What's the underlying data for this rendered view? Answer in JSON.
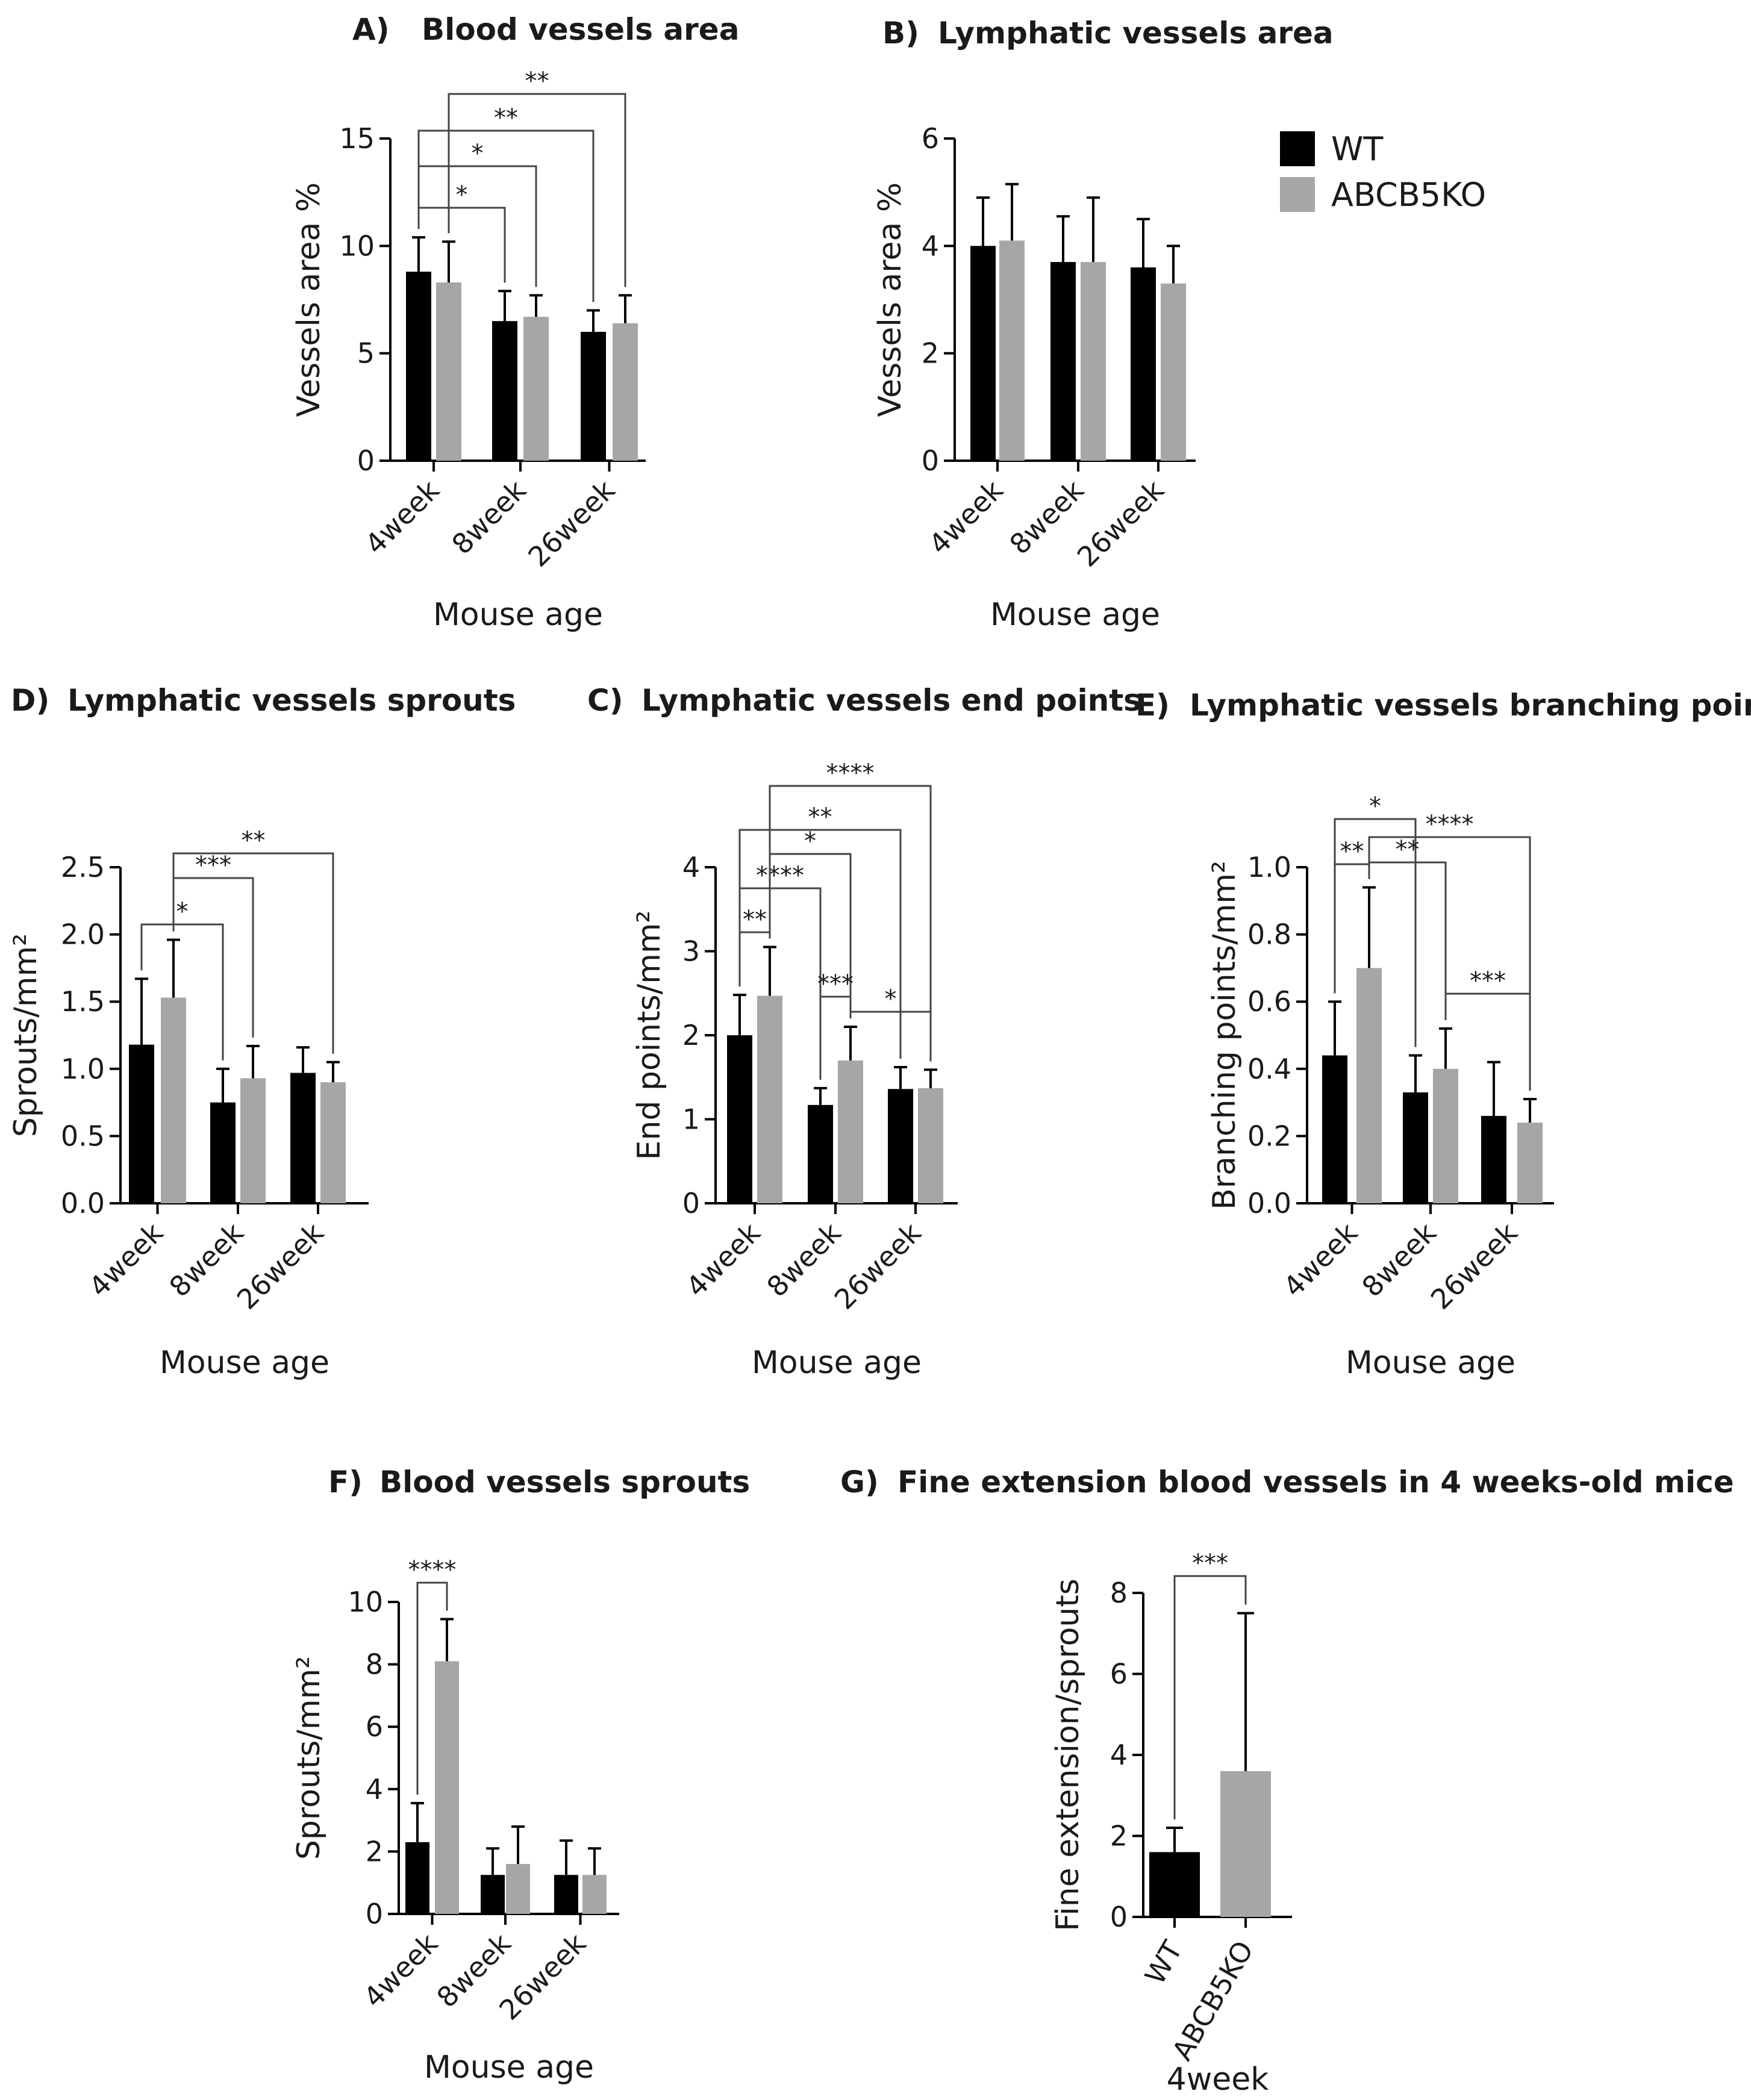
{
  "legend": {
    "items": [
      {
        "label": "WT",
        "color": "#000000"
      },
      {
        "label": "ABCB5KO",
        "color": "#a6a6a8"
      }
    ]
  },
  "chart_data": [
    {
      "id": "A",
      "panel_label": "A)",
      "title": "Blood vessels area",
      "type": "bar",
      "categories": [
        "4week",
        "8week",
        "26week"
      ],
      "series": [
        {
          "name": "WT",
          "values": [
            8.8,
            6.5,
            6.0
          ],
          "errors": [
            1.6,
            1.4,
            1.0
          ]
        },
        {
          "name": "ABCB5KO",
          "values": [
            8.3,
            6.7,
            6.4
          ],
          "errors": [
            1.9,
            1.0,
            1.3
          ]
        }
      ],
      "ylabel": "Vessels area %",
      "xlabel": "Mouse age",
      "ylim": [
        0,
        15
      ],
      "yticks": [
        "0",
        "5",
        "10",
        "15"
      ],
      "significance": [
        {
          "from": [
            0,
            0
          ],
          "to": [
            1,
            0
          ],
          "label": "*"
        },
        {
          "from": [
            0,
            0
          ],
          "to": [
            1,
            1
          ],
          "label": "*"
        },
        {
          "from": [
            0,
            0
          ],
          "to": [
            2,
            0
          ],
          "label": "**"
        },
        {
          "from": [
            0,
            1
          ],
          "to": [
            2,
            1
          ],
          "label": "**"
        }
      ]
    },
    {
      "id": "B",
      "panel_label": "B)",
      "title": "Lymphatic vessels area",
      "type": "bar",
      "categories": [
        "4week",
        "8week",
        "26week"
      ],
      "series": [
        {
          "name": "WT",
          "values": [
            4.0,
            3.7,
            3.6
          ],
          "errors": [
            0.9,
            0.85,
            0.9
          ]
        },
        {
          "name": "ABCB5KO",
          "values": [
            4.1,
            3.7,
            3.3
          ],
          "errors": [
            1.05,
            1.2,
            0.7
          ]
        }
      ],
      "ylabel": "Vessels area %",
      "xlabel": "Mouse age",
      "ylim": [
        0,
        6
      ],
      "yticks": [
        "0",
        "2",
        "4",
        "6"
      ],
      "significance": []
    },
    {
      "id": "D",
      "panel_label": "D)",
      "title": "Lymphatic vessels sprouts",
      "type": "bar",
      "categories": [
        "4week",
        "8week",
        "26week"
      ],
      "series": [
        {
          "name": "WT",
          "values": [
            1.18,
            0.75,
            0.97
          ],
          "errors": [
            0.49,
            0.25,
            0.19
          ]
        },
        {
          "name": "ABCB5KO",
          "values": [
            1.53,
            0.93,
            0.9
          ],
          "errors": [
            0.43,
            0.24,
            0.15
          ]
        }
      ],
      "ylabel": "Sprouts/mm²",
      "xlabel": "Mouse age",
      "ylim": [
        0,
        2.5
      ],
      "yticks": [
        "0.0",
        "0.5",
        "1.0",
        "1.5",
        "2.0",
        "2.5"
      ],
      "significance": [
        {
          "from": [
            0,
            0
          ],
          "to": [
            1,
            0
          ],
          "label": "*"
        },
        {
          "from": [
            0,
            1
          ],
          "to": [
            1,
            1
          ],
          "label": "***"
        },
        {
          "from": [
            0,
            1
          ],
          "to": [
            2,
            1
          ],
          "label": "**"
        }
      ]
    },
    {
      "id": "C",
      "panel_label": "C)",
      "title": "Lymphatic vessels end points",
      "type": "bar",
      "categories": [
        "4week",
        "8week",
        "26week"
      ],
      "series": [
        {
          "name": "WT",
          "values": [
            2.0,
            1.17,
            1.36
          ],
          "errors": [
            0.48,
            0.2,
            0.26
          ]
        },
        {
          "name": "ABCB5KO",
          "values": [
            2.47,
            1.7,
            1.37
          ],
          "errors": [
            0.58,
            0.4,
            0.22
          ]
        }
      ],
      "ylabel": "End points/mm²",
      "xlabel": "Mouse age",
      "ylim": [
        0,
        4
      ],
      "yticks": [
        "0",
        "1",
        "2",
        "3",
        "4"
      ],
      "significance": [
        {
          "from": [
            0,
            0
          ],
          "to": [
            0,
            1
          ],
          "label": "**"
        },
        {
          "from": [
            0,
            0
          ],
          "to": [
            1,
            0
          ],
          "label": "****"
        },
        {
          "from": [
            0,
            1
          ],
          "to": [
            1,
            1
          ],
          "label": "*"
        },
        {
          "from": [
            0,
            0
          ],
          "to": [
            2,
            0
          ],
          "label": "**"
        },
        {
          "from": [
            0,
            1
          ],
          "to": [
            2,
            1
          ],
          "label": "****"
        },
        {
          "from": [
            1,
            0
          ],
          "to": [
            1,
            1
          ],
          "label": "***"
        },
        {
          "from": [
            1,
            1
          ],
          "to": [
            2,
            1
          ],
          "label": "*"
        }
      ]
    },
    {
      "id": "E",
      "panel_label": "E)",
      "title": "Lymphatic vessels branching points",
      "type": "bar",
      "categories": [
        "4week",
        "8week",
        "26week"
      ],
      "series": [
        {
          "name": "WT",
          "values": [
            0.44,
            0.33,
            0.26
          ],
          "errors": [
            0.16,
            0.11,
            0.16
          ]
        },
        {
          "name": "ABCB5KO",
          "values": [
            0.7,
            0.4,
            0.24
          ],
          "errors": [
            0.24,
            0.12,
            0.07
          ]
        }
      ],
      "ylabel": "Branching points/mm²",
      "xlabel": "Mouse age",
      "ylim": [
        0,
        1.0
      ],
      "yticks": [
        "0.0",
        "0.2",
        "0.4",
        "0.6",
        "0.8",
        "1.0"
      ],
      "significance": [
        {
          "from": [
            0,
            0
          ],
          "to": [
            0,
            1
          ],
          "label": "**"
        },
        {
          "from": [
            0,
            0
          ],
          "to": [
            1,
            0
          ],
          "label": "*"
        },
        {
          "from": [
            0,
            1
          ],
          "to": [
            1,
            1
          ],
          "label": "**"
        },
        {
          "from": [
            0,
            1
          ],
          "to": [
            2,
            1
          ],
          "label": "****"
        },
        {
          "from": [
            1,
            1
          ],
          "to": [
            2,
            1
          ],
          "label": "***"
        }
      ]
    },
    {
      "id": "F",
      "panel_label": "F)",
      "title": "Blood vessels sprouts",
      "type": "bar",
      "categories": [
        "4week",
        "8week",
        "26week"
      ],
      "series": [
        {
          "name": "WT",
          "values": [
            2.3,
            1.25,
            1.25
          ],
          "errors": [
            1.25,
            0.85,
            1.1
          ]
        },
        {
          "name": "ABCB5KO",
          "values": [
            8.1,
            1.6,
            1.25
          ],
          "errors": [
            1.35,
            1.2,
            0.85
          ]
        }
      ],
      "ylabel": "Sprouts/mm²",
      "xlabel": "Mouse age",
      "ylim": [
        0,
        10
      ],
      "yticks": [
        "0",
        "2",
        "4",
        "6",
        "8",
        "10"
      ],
      "significance": [
        {
          "from": [
            0,
            0
          ],
          "to": [
            0,
            1
          ],
          "label": "****"
        }
      ]
    },
    {
      "id": "G",
      "panel_label": "G)",
      "title": "Fine extension blood vessels  in 4 weeks-old mice",
      "type": "bar",
      "categories": [
        "WT",
        "ABCB5KO"
      ],
      "values": [
        1.6,
        3.6
      ],
      "errors": [
        0.6,
        3.9
      ],
      "colors": [
        "#000000",
        "#a6a6a8"
      ],
      "ylabel": "Fine extension/sprouts",
      "xlabel": "4week",
      "ylim": [
        0,
        8
      ],
      "yticks": [
        "0",
        "2",
        "4",
        "6",
        "8"
      ],
      "significance": [
        {
          "from": [
            0
          ],
          "to": [
            1
          ],
          "label": "***"
        }
      ]
    }
  ]
}
